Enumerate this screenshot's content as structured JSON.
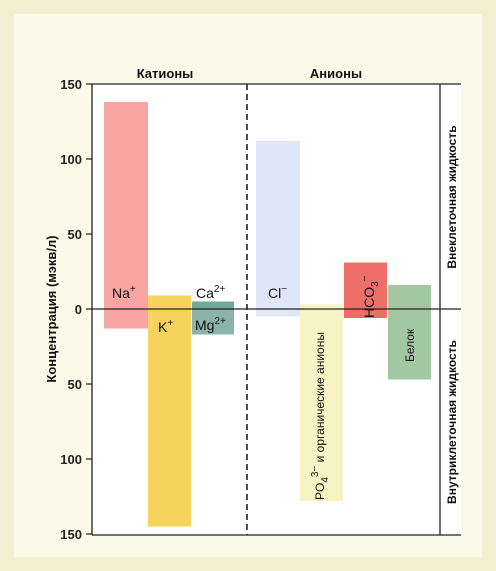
{
  "chart_data": {
    "type": "bar",
    "ylabel": "Концентрация (мэкв/л)",
    "ylim": [
      -150,
      150
    ],
    "ytick_labels": [
      "150",
      "100",
      "50",
      "0",
      "50",
      "100",
      "150"
    ],
    "grid": false,
    "groups": [
      {
        "name": "Катионы"
      },
      {
        "name": "Анионы"
      }
    ],
    "compartments": {
      "top": "Внеклеточная жидкость",
      "bottom": "Внутриклеточная жидкость"
    },
    "colors": {
      "na": "#f8a4a2",
      "k": "#f6d35e",
      "ca": "#6fa89c",
      "mg": "#8cb3aa",
      "cl": "#dfe6f7",
      "po4": "#f8f3c4",
      "hco3": "#ee6f6a",
      "protein": "#a3c7a0"
    },
    "bars": [
      {
        "ion": "na",
        "label": "Na",
        "sup": "+",
        "group": "Катионы",
        "extracellular": 138,
        "intracellular": 13
      },
      {
        "ion": "k",
        "label": "K",
        "sup": "+",
        "group": "Катионы",
        "extracellular": 9,
        "intracellular": 145
      },
      {
        "ion": "ca",
        "label": "Ca",
        "sup": "2+",
        "group": "Катионы",
        "extracellular": 5,
        "intracellular": 0
      },
      {
        "ion": "mg",
        "label": "Mg",
        "sup": "2+",
        "group": "Катионы",
        "extracellular": 0,
        "intracellular": 17
      },
      {
        "ion": "cl",
        "label": "Cl",
        "sup": "−",
        "group": "Анионы",
        "extracellular": 112,
        "intracellular": 5
      },
      {
        "ion": "po4",
        "label": "PO",
        "sub": "4",
        "sup": "3−",
        "suffix": " и органические анионы",
        "group": "Анионы",
        "extracellular": 3,
        "intracellular": 128
      },
      {
        "ion": "hco3",
        "label": "HCO",
        "sub": "3",
        "sup": "−",
        "group": "Анионы",
        "extracellular": 31,
        "intracellular": 6
      },
      {
        "ion": "protein",
        "label": "Белок",
        "group": "Анионы",
        "extracellular": 16,
        "intracellular": 47
      }
    ]
  }
}
